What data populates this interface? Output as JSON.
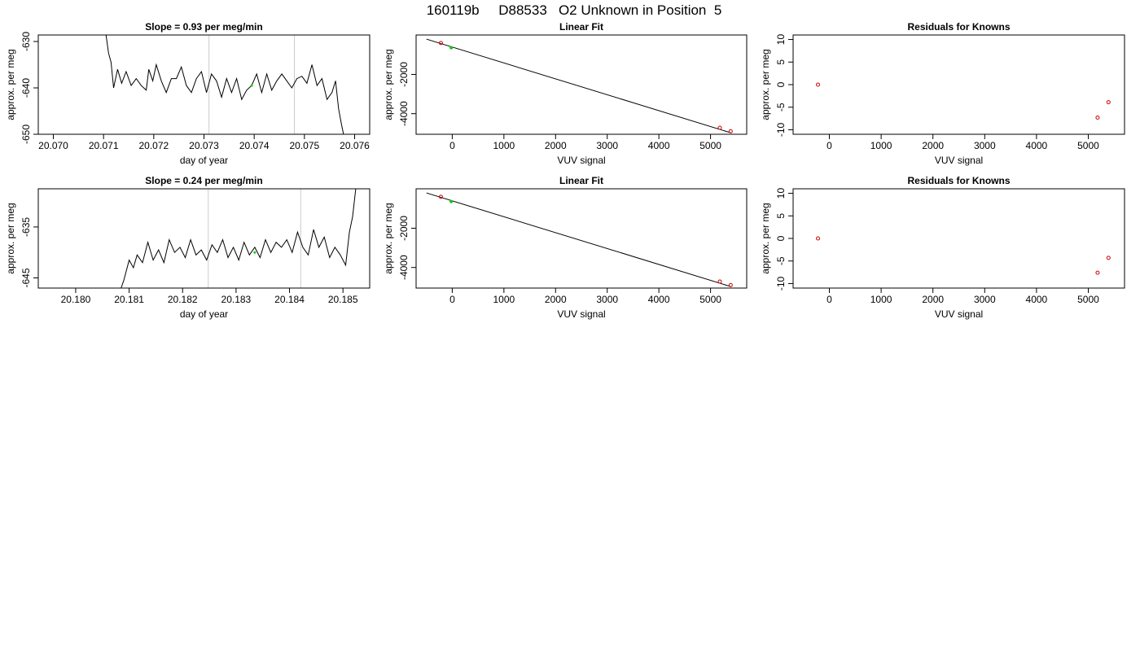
{
  "page_title": "160119b     D88533   O2 Unknown in Position  5",
  "colors": {
    "line": "#000000",
    "known": "#cc0000",
    "unknown": "#00cc00",
    "marker_line": "#cccccc"
  },
  "chart_data": [
    {
      "type": "line",
      "title": "Slope =  0.93  per meg/min",
      "xlabel": "day of year",
      "ylabel": "approx. per meg",
      "xlim": [
        20.0697,
        20.0763
      ],
      "ylim": [
        -650,
        -628.6
      ],
      "xticks": [
        20.07,
        20.071,
        20.072,
        20.073,
        20.074,
        20.075,
        20.076
      ],
      "xtick_labels": [
        "20.070",
        "20.071",
        "20.072",
        "20.073",
        "20.074",
        "20.075",
        "20.076"
      ],
      "yticks": [
        -630,
        -640,
        -650
      ],
      "ytick_labels": [
        "-630",
        "-640",
        "-650"
      ],
      "vlines": [
        20.0731,
        20.0748
      ],
      "series": [
        {
          "x": [
            20.07105,
            20.0711,
            20.07115,
            20.0712,
            20.07128,
            20.07136,
            20.07145,
            20.07155,
            20.07165,
            20.07175,
            20.07185,
            20.0719,
            20.07198,
            20.07205,
            20.07215,
            20.07225,
            20.07235,
            20.07245,
            20.07255,
            20.07265,
            20.07275,
            20.07285,
            20.07295,
            20.07305,
            20.07315,
            20.07325,
            20.07335,
            20.07345,
            20.07355,
            20.07365,
            20.07375,
            20.07385,
            20.07395,
            20.07405,
            20.07415,
            20.07425,
            20.07435,
            20.07445,
            20.07455,
            20.07465,
            20.07475,
            20.07485,
            20.07495,
            20.07505,
            20.07515,
            20.07525,
            20.07535,
            20.07545,
            20.07555,
            20.07562,
            20.07568,
            20.07574,
            20.07578
          ],
          "y": [
            -628.6,
            -632.5,
            -634.5,
            -640.0,
            -636.0,
            -639.0,
            -636.5,
            -639.5,
            -638.0,
            -639.5,
            -640.5,
            -636.0,
            -638.5,
            -635.0,
            -638.5,
            -641.0,
            -638.0,
            -638.0,
            -635.5,
            -639.5,
            -641.0,
            -638.0,
            -636.5,
            -641.0,
            -637.0,
            -638.5,
            -642.0,
            -638.0,
            -641.0,
            -638.0,
            -642.5,
            -640.5,
            -639.5,
            -637.0,
            -641.0,
            -637.0,
            -640.5,
            -638.5,
            -637.0,
            -638.5,
            -640.0,
            -638.0,
            -637.5,
            -639.0,
            -635.0,
            -639.5,
            -638.0,
            -642.5,
            -641.0,
            -638.5,
            -644.5,
            -648.0,
            -650.0
          ]
        }
      ],
      "highlight_points": [
        {
          "x": 20.07395,
          "y": -639.5,
          "color": "unknown"
        }
      ]
    },
    {
      "type": "scatter",
      "title": "Linear Fit",
      "xlabel": "VUV signal",
      "ylabel": "approx. per meg",
      "xlim": [
        -700,
        5700
      ],
      "ylim": [
        -5050,
        10
      ],
      "xticks": [
        0,
        1000,
        2000,
        3000,
        4000,
        5000
      ],
      "xtick_labels": [
        "0",
        "1000",
        "2000",
        "3000",
        "4000",
        "5000"
      ],
      "yticks": [
        -2000,
        -4000
      ],
      "ytick_labels": [
        "-2000",
        "-4000"
      ],
      "fit_line": {
        "x": [
          -500,
          5400
        ],
        "y": [
          -200,
          -4980
        ]
      },
      "known_points": {
        "x": [
          -220,
          5180,
          5390
        ],
        "y": [
          -400,
          -4720,
          -4900
        ]
      },
      "unknown_points": {
        "x": [
          -20
        ],
        "y": [
          -640
        ]
      }
    },
    {
      "type": "scatter",
      "title": "Residuals for Knowns",
      "xlabel": "VUV signal",
      "ylabel": "approx. per meg",
      "xlim": [
        -700,
        5700
      ],
      "ylim": [
        -11,
        11
      ],
      "xticks": [
        0,
        1000,
        2000,
        3000,
        4000,
        5000
      ],
      "xtick_labels": [
        "0",
        "1000",
        "2000",
        "3000",
        "4000",
        "5000"
      ],
      "yticks": [
        10,
        5,
        0,
        -5,
        -10
      ],
      "ytick_labels": [
        "10",
        "5",
        "0",
        "-5",
        "-10"
      ],
      "known_points": {
        "x": [
          -220,
          5180,
          5390
        ],
        "y": [
          0.0,
          -7.3,
          -3.9
        ]
      }
    },
    {
      "type": "line",
      "title": "Slope =  0.24  per meg/min",
      "xlabel": "day of year",
      "ylabel": "approx. per meg",
      "xlim": [
        20.1793,
        20.1855
      ],
      "ylim": [
        -647.0,
        -627.5
      ],
      "xticks": [
        20.18,
        20.181,
        20.182,
        20.183,
        20.184,
        20.185
      ],
      "xtick_labels": [
        "20.180",
        "20.181",
        "20.182",
        "20.183",
        "20.184",
        "20.185"
      ],
      "yticks": [
        -635,
        -645
      ],
      "ytick_labels": [
        "-635",
        "-645"
      ],
      "vlines": [
        20.18248,
        20.18421
      ],
      "series": [
        {
          "x": [
            20.18085,
            20.1809,
            20.18095,
            20.181,
            20.18108,
            20.18115,
            20.18125,
            20.18135,
            20.18145,
            20.18155,
            20.18165,
            20.18175,
            20.18185,
            20.18195,
            20.18205,
            20.18215,
            20.18225,
            20.18235,
            20.18245,
            20.18255,
            20.18265,
            20.18275,
            20.18285,
            20.18295,
            20.18305,
            20.18315,
            20.18325,
            20.18335,
            20.18345,
            20.18355,
            20.18365,
            20.18375,
            20.18385,
            20.18395,
            20.18405,
            20.18415,
            20.18425,
            20.18435,
            20.18445,
            20.18455,
            20.18465,
            20.18475,
            20.18485,
            20.18495,
            20.18505,
            20.18512,
            20.18518,
            20.18524
          ],
          "y": [
            -647.0,
            -645.5,
            -643.5,
            -641.5,
            -643.0,
            -640.5,
            -642.0,
            -638.0,
            -641.5,
            -639.5,
            -642.0,
            -637.5,
            -640.0,
            -639.0,
            -641.0,
            -637.5,
            -640.5,
            -639.5,
            -641.5,
            -638.5,
            -640.0,
            -637.5,
            -641.0,
            -639.0,
            -641.5,
            -638.0,
            -640.5,
            -639.0,
            -641.0,
            -637.5,
            -640.0,
            -638.0,
            -639.0,
            -637.5,
            -640.0,
            -636.0,
            -639.0,
            -640.5,
            -635.5,
            -639.0,
            -637.0,
            -641.0,
            -639.0,
            -640.5,
            -642.5,
            -636.0,
            -633.0,
            -627.5
          ]
        }
      ],
      "highlight_points": [
        {
          "x": 20.18335,
          "y": -640.0,
          "color": "unknown"
        }
      ]
    },
    {
      "type": "scatter",
      "title": "Linear Fit",
      "xlabel": "VUV signal",
      "ylabel": "approx. per meg",
      "xlim": [
        -700,
        5700
      ],
      "ylim": [
        -5050,
        10
      ],
      "xticks": [
        0,
        1000,
        2000,
        3000,
        4000,
        5000
      ],
      "xtick_labels": [
        "0",
        "1000",
        "2000",
        "3000",
        "4000",
        "5000"
      ],
      "yticks": [
        -2000,
        -4000
      ],
      "ytick_labels": [
        "-2000",
        "-4000"
      ],
      "fit_line": {
        "x": [
          -500,
          5400
        ],
        "y": [
          -200,
          -4980
        ]
      },
      "known_points": {
        "x": [
          -220,
          5180,
          5390
        ],
        "y": [
          -400,
          -4720,
          -4900
        ]
      },
      "unknown_points": {
        "x": [
          -20
        ],
        "y": [
          -640
        ]
      }
    },
    {
      "type": "scatter",
      "title": "Residuals for Knowns",
      "xlabel": "VUV signal",
      "ylabel": "approx. per meg",
      "xlim": [
        -700,
        5700
      ],
      "ylim": [
        -11,
        11
      ],
      "xticks": [
        0,
        1000,
        2000,
        3000,
        4000,
        5000
      ],
      "xtick_labels": [
        "0",
        "1000",
        "2000",
        "3000",
        "4000",
        "5000"
      ],
      "yticks": [
        10,
        5,
        0,
        -5,
        -10
      ],
      "ytick_labels": [
        "10",
        "5",
        "0",
        "-5",
        "-10"
      ],
      "known_points": {
        "x": [
          -220,
          5180,
          5390
        ],
        "y": [
          0.0,
          -7.6,
          -4.3
        ]
      }
    }
  ]
}
